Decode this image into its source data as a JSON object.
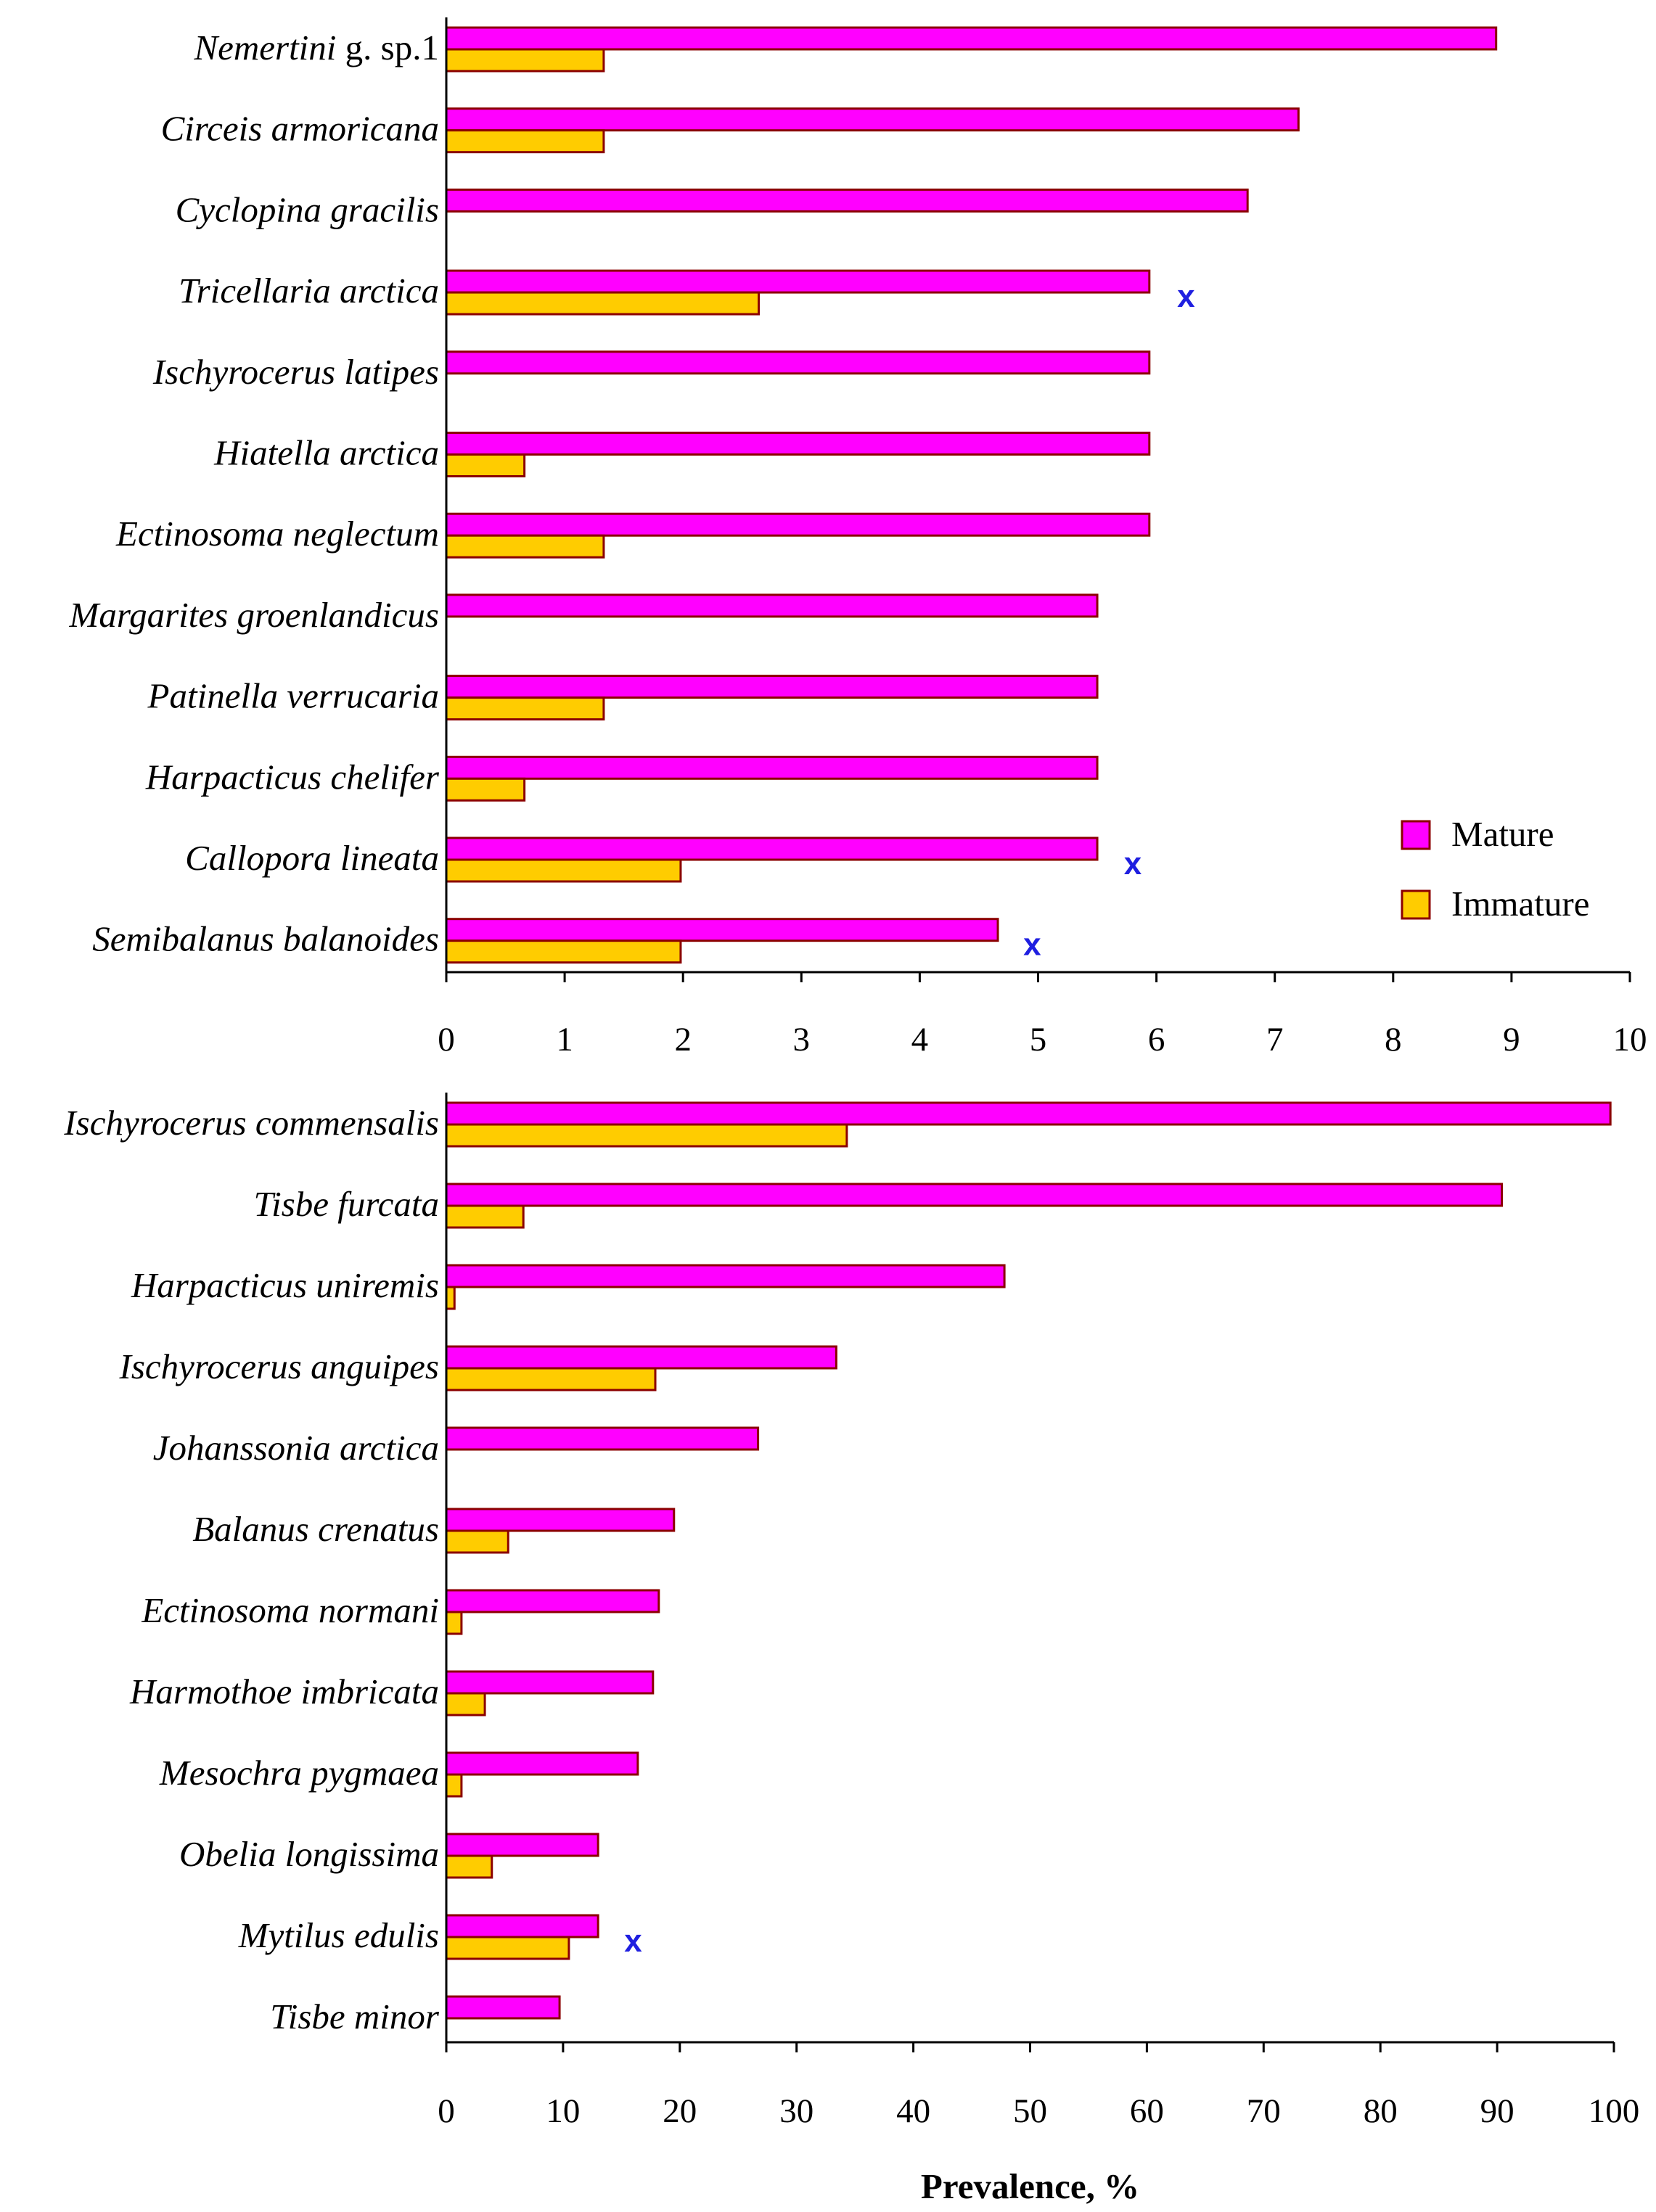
{
  "chart_data": [
    {
      "type": "bar",
      "orientation": "horizontal",
      "title": "",
      "xlabel": "",
      "ylabel": "",
      "xlim": [
        0,
        10
      ],
      "xticks": [
        "0",
        "1",
        "2",
        "3",
        "4",
        "5",
        "6",
        "7",
        "8",
        "9",
        "10"
      ],
      "categories": [
        {
          "parts": [
            {
              "text": "Nemertini",
              "italic": true
            },
            {
              "text": " g. sp.1",
              "italic": false
            }
          ]
        },
        {
          "parts": [
            {
              "text": "Circeis armoricana",
              "italic": true
            }
          ]
        },
        {
          "parts": [
            {
              "text": "Cyclopina gracilis",
              "italic": true
            }
          ]
        },
        {
          "parts": [
            {
              "text": "Tricellaria arctica",
              "italic": true
            }
          ]
        },
        {
          "parts": [
            {
              "text": "Ischyrocerus latipes",
              "italic": true
            }
          ]
        },
        {
          "parts": [
            {
              "text": "Hiatella arctica",
              "italic": true
            }
          ]
        },
        {
          "parts": [
            {
              "text": "Ectinosoma neglectum",
              "italic": true
            }
          ]
        },
        {
          "parts": [
            {
              "text": "Margarites groenlandicus",
              "italic": true
            }
          ]
        },
        {
          "parts": [
            {
              "text": "Patinella verrucaria",
              "italic": true
            }
          ]
        },
        {
          "parts": [
            {
              "text": "Harpacticus chelifer",
              "italic": true
            }
          ]
        },
        {
          "parts": [
            {
              "text": "Callopora lineata",
              "italic": true
            }
          ]
        },
        {
          "parts": [
            {
              "text": "Semibalanus balanoides",
              "italic": true
            }
          ]
        }
      ],
      "series": [
        {
          "name": "Mature",
          "color": "#ff00ff",
          "values": [
            8.87,
            7.2,
            6.77,
            5.94,
            5.94,
            5.94,
            5.94,
            5.5,
            5.5,
            5.5,
            5.5,
            4.66
          ]
        },
        {
          "name": "Immature",
          "color": "#ffcc00",
          "values": [
            1.33,
            1.33,
            0,
            2.64,
            0,
            0.66,
            1.33,
            0,
            1.33,
            0.66,
            1.98,
            1.98
          ]
        }
      ],
      "markers": [
        {
          "category_index": 3,
          "text": "x",
          "x": 6.25
        },
        {
          "category_index": 10,
          "text": "x",
          "x": 5.8
        },
        {
          "category_index": 11,
          "text": "x",
          "x": 4.95
        }
      ],
      "legend": {
        "position": "right",
        "entries": [
          {
            "label": "Mature",
            "color": "#ff00ff"
          },
          {
            "label": "Immature",
            "color": "#ffcc00"
          }
        ]
      }
    },
    {
      "type": "bar",
      "orientation": "horizontal",
      "title": "",
      "xlabel": "Prevalence, %",
      "ylabel": "",
      "xlim": [
        0,
        100
      ],
      "xticks": [
        "0",
        "10",
        "20",
        "30",
        "40",
        "50",
        "60",
        "70",
        "80",
        "90",
        "100"
      ],
      "categories": [
        {
          "parts": [
            {
              "text": "Ischyrocerus commensalis",
              "italic": true
            }
          ]
        },
        {
          "parts": [
            {
              "text": "Tisbe furcata",
              "italic": true
            }
          ]
        },
        {
          "parts": [
            {
              "text": "Harpacticus uniremis",
              "italic": true
            }
          ]
        },
        {
          "parts": [
            {
              "text": "Ischyrocerus anguipes",
              "italic": true
            }
          ]
        },
        {
          "parts": [
            {
              "text": "Johanssonia arctica",
              "italic": true
            }
          ]
        },
        {
          "parts": [
            {
              "text": "Balanus crenatus",
              "italic": true
            }
          ]
        },
        {
          "parts": [
            {
              "text": "Ectinosoma normani",
              "italic": true
            }
          ]
        },
        {
          "parts": [
            {
              "text": "Harmothoe imbricata",
              "italic": true
            }
          ]
        },
        {
          "parts": [
            {
              "text": "Mesochra pygmaea",
              "italic": true
            }
          ]
        },
        {
          "parts": [
            {
              "text": "Obelia longissima",
              "italic": true
            }
          ]
        },
        {
          "parts": [
            {
              "text": "Mytilus edulis",
              "italic": true
            }
          ]
        },
        {
          "parts": [
            {
              "text": "Tisbe minor",
              "italic": true
            }
          ]
        }
      ],
      "series": [
        {
          "name": "Mature",
          "color": "#ff00ff",
          "values": [
            99.7,
            90.4,
            47.8,
            33.4,
            26.7,
            19.5,
            18.2,
            17.7,
            16.4,
            13.0,
            13.0,
            9.7
          ]
        },
        {
          "name": "Immature",
          "color": "#ffcc00",
          "values": [
            34.3,
            6.6,
            0.7,
            17.9,
            0,
            5.3,
            1.3,
            3.3,
            1.3,
            3.9,
            10.5,
            0
          ]
        }
      ],
      "markers": [
        {
          "category_index": 10,
          "text": "x",
          "x": 16
        }
      ]
    }
  ]
}
